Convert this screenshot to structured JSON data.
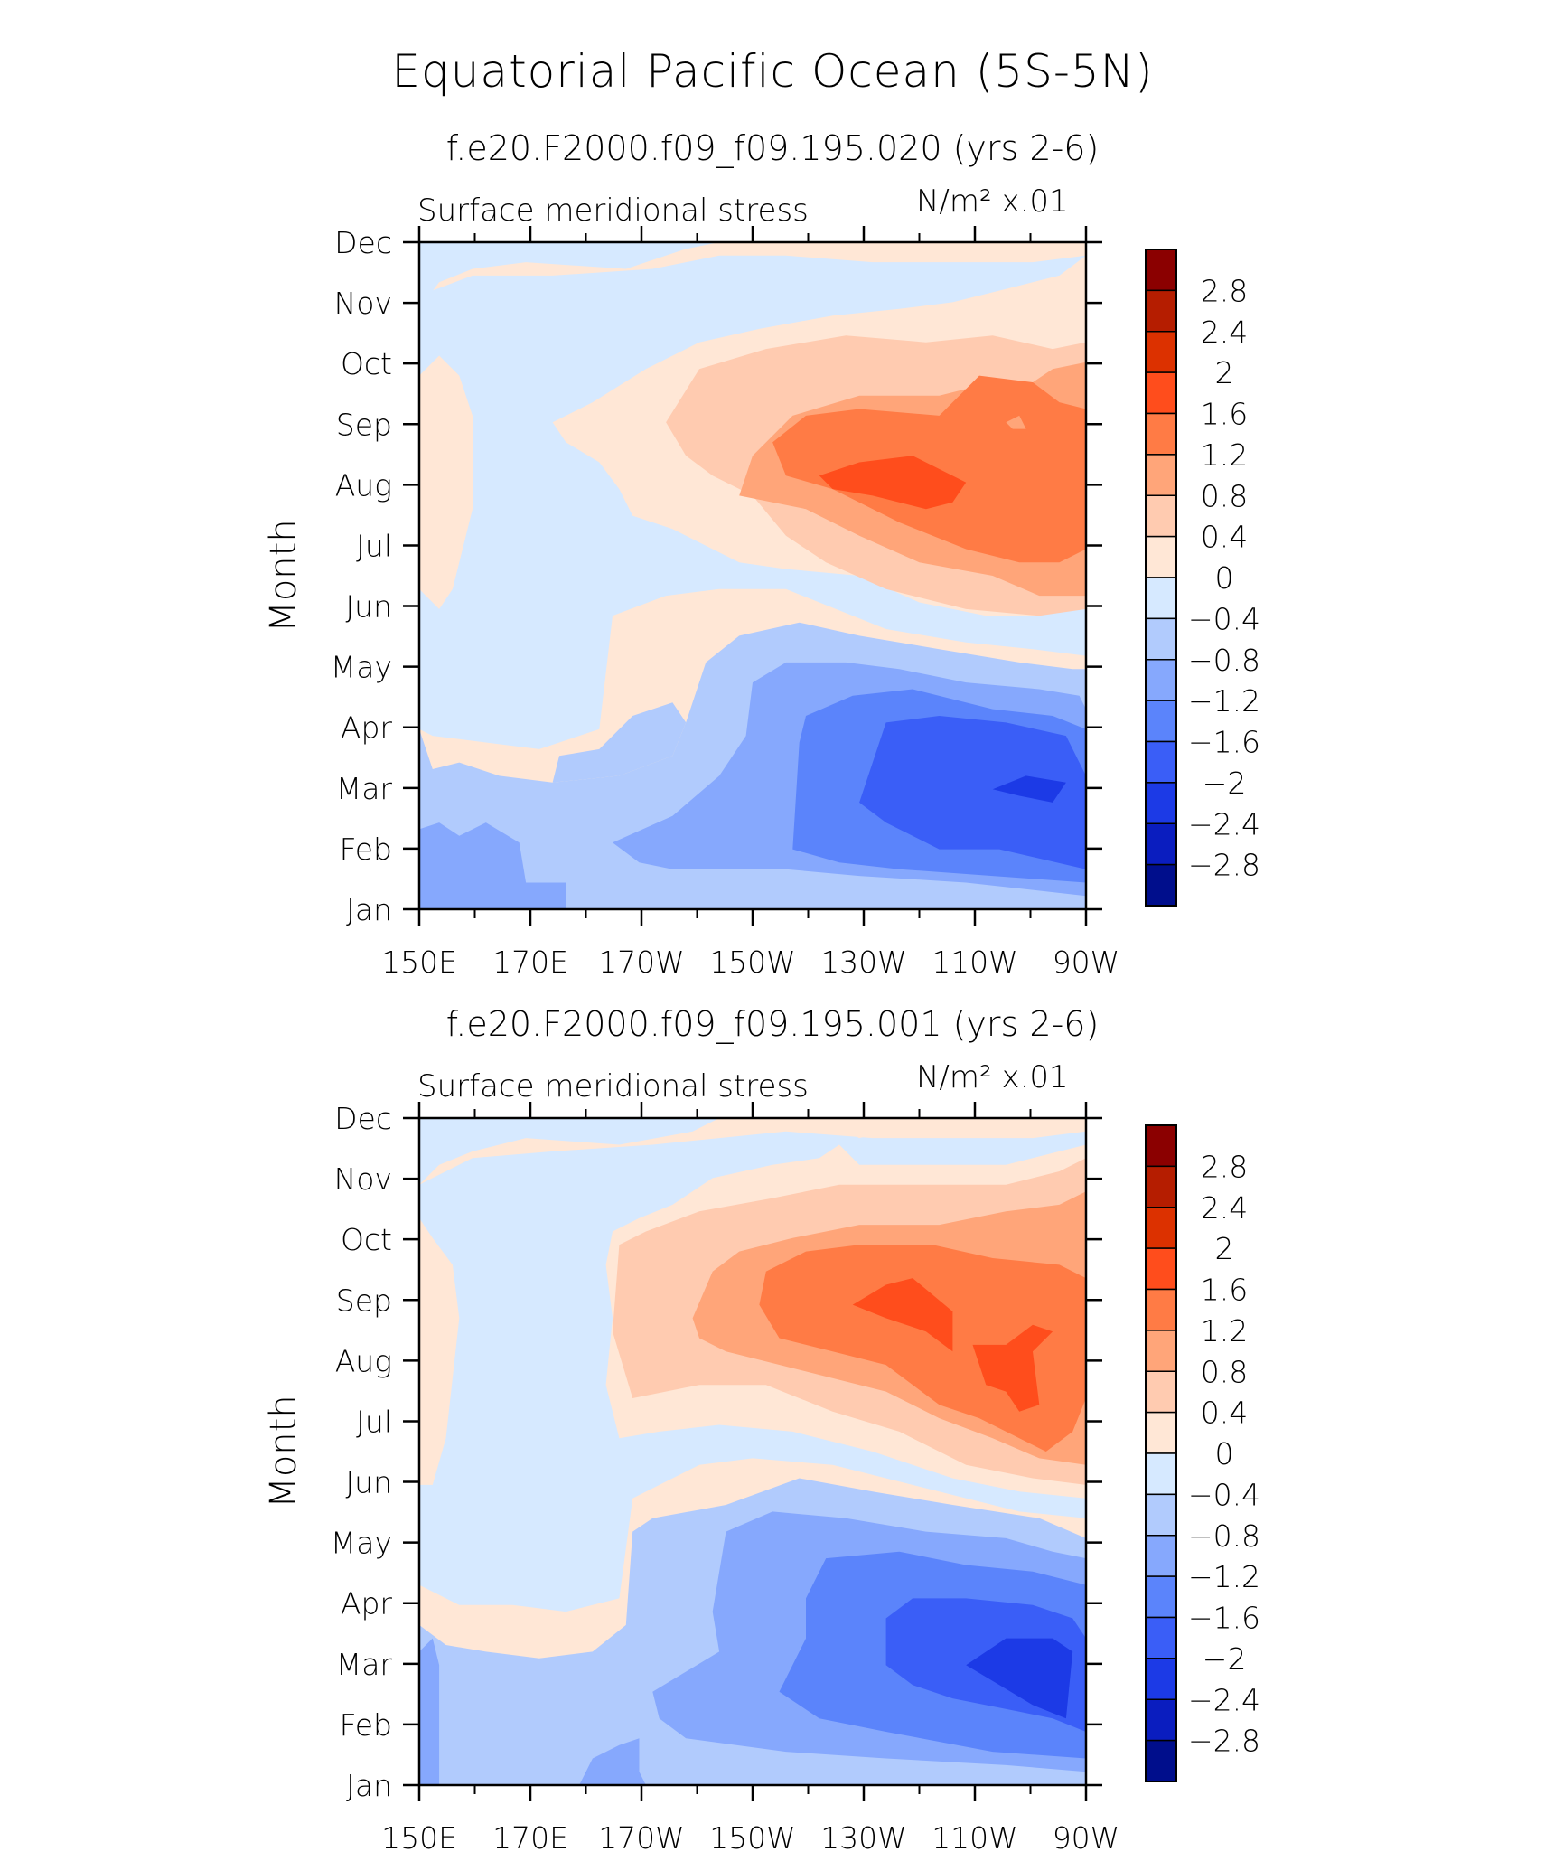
{
  "main_title": "Equatorial Pacific Ocean (5S-5N)",
  "chart_data": [
    {
      "type": "heatmap",
      "title": "f.e20.F2000.f09_f09.195.020 (yrs 2-6)",
      "variable": "Surface meridional stress",
      "units": "N/m² x.01",
      "xlabel": "",
      "ylabel": "Month",
      "x_ticks": [
        "150E",
        "170E",
        "170W",
        "150W",
        "130W",
        "110W",
        "90W"
      ],
      "y_ticks": [
        "Jan",
        "Feb",
        "Mar",
        "Apr",
        "May",
        "Jun",
        "Jul",
        "Aug",
        "Sep",
        "Oct",
        "Nov",
        "Dec"
      ],
      "x_range": [
        150,
        270
      ],
      "contour_levels": [
        -2.8,
        -2.4,
        -2,
        -1.6,
        -1.2,
        -0.8,
        -0.4,
        0,
        0.4,
        0.8,
        1.2,
        1.6,
        2,
        2.4,
        2.8
      ],
      "colorbar_labels": [
        "2.8",
        "2.4",
        "2",
        "1.6",
        "1.2",
        "0.8",
        "0.4",
        "0",
        "−0.4",
        "−0.8",
        "−1.2",
        "−1.6",
        "−2",
        "−2.4",
        "−2.8"
      ],
      "colorbar_colors": [
        "#8b0000",
        "#b51d00",
        "#dc3100",
        "#ff4d1c",
        "#ff7b45",
        "#ffa579",
        "#ffcbb0",
        "#ffe7d6",
        "#d6e9ff",
        "#b1cbfd",
        "#86a8fd",
        "#5b84fb",
        "#3a5ef7",
        "#1c3ae6",
        "#0a1dbf",
        "#000e8c"
      ],
      "grid": false,
      "legend": "right colorbar"
    },
    {
      "type": "heatmap",
      "title": "f.e20.F2000.f09_f09.195.001 (yrs 2-6)",
      "variable": "Surface meridional stress",
      "units": "N/m² x.01",
      "xlabel": "",
      "ylabel": "Month",
      "x_ticks": [
        "150E",
        "170E",
        "170W",
        "150W",
        "130W",
        "110W",
        "90W"
      ],
      "y_ticks": [
        "Jan",
        "Feb",
        "Mar",
        "Apr",
        "May",
        "Jun",
        "Jul",
        "Aug",
        "Sep",
        "Oct",
        "Nov",
        "Dec"
      ],
      "x_range": [
        150,
        270
      ],
      "contour_levels": [
        -2.8,
        -2.4,
        -2,
        -1.6,
        -1.2,
        -0.8,
        -0.4,
        0,
        0.4,
        0.8,
        1.2,
        1.6,
        2,
        2.4,
        2.8
      ],
      "colorbar_labels": [
        "2.8",
        "2.4",
        "2",
        "1.6",
        "1.2",
        "0.8",
        "0.4",
        "0",
        "−0.4",
        "−0.8",
        "−1.2",
        "−1.6",
        "−2",
        "−2.4",
        "−2.8"
      ],
      "colorbar_colors": [
        "#8b0000",
        "#b51d00",
        "#dc3100",
        "#ff4d1c",
        "#ff7b45",
        "#ffa579",
        "#ffcbb0",
        "#ffe7d6",
        "#d6e9ff",
        "#b1cbfd",
        "#86a8fd",
        "#5b84fb",
        "#3a5ef7",
        "#1c3ae6",
        "#0a1dbf",
        "#000e8c"
      ],
      "grid": false,
      "legend": "right colorbar"
    }
  ]
}
